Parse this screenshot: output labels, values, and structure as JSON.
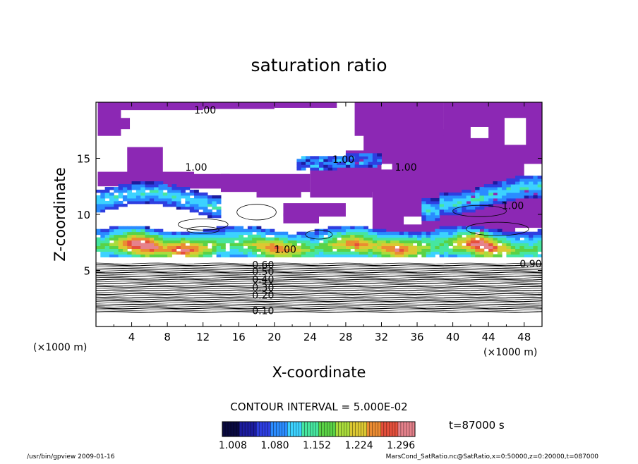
{
  "chart_data": {
    "type": "heatmap",
    "title": "saturation ratio",
    "xlabel": "X-coordinate",
    "ylabel": "Z-coordinate",
    "x_unit": "(×1000 m)",
    "y_unit": "(×1000 m)",
    "xlim": [
      0,
      50
    ],
    "ylim": [
      0,
      20
    ],
    "x_ticks": [
      "4",
      "8",
      "12",
      "16",
      "20",
      "24",
      "28",
      "32",
      "36",
      "40",
      "44",
      "48"
    ],
    "y_ticks": [
      "5",
      "10",
      "15"
    ],
    "contour_interval_label": "CONTOUR INTERVAL = 5.000E-02",
    "contour_labels": [
      {
        "text": "1.00",
        "x": 11.0,
        "z": 19.3
      },
      {
        "text": "1.00",
        "x": 10.0,
        "z": 14.2
      },
      {
        "text": "1.00",
        "x": 26.5,
        "z": 14.9
      },
      {
        "text": "1.00",
        "x": 33.5,
        "z": 14.2
      },
      {
        "text": "1.00",
        "x": 45.5,
        "z": 10.8
      },
      {
        "text": "1.00",
        "x": 20.0,
        "z": 6.9
      },
      {
        "text": "0.90",
        "x": 47.5,
        "z": 5.6
      },
      {
        "text": "0.60",
        "x": 17.5,
        "z": 5.5
      },
      {
        "text": "0.50",
        "x": 17.5,
        "z": 4.9
      },
      {
        "text": "0.40",
        "x": 17.5,
        "z": 4.2
      },
      {
        "text": "0.30",
        "x": 17.5,
        "z": 3.5
      },
      {
        "text": "0.20",
        "x": 17.5,
        "z": 2.8
      },
      {
        "text": "0.10",
        "x": 17.5,
        "z": 1.4
      }
    ],
    "colorbar": {
      "ticks": [
        "1.008",
        "1.080",
        "1.152",
        "1.224",
        "1.296"
      ],
      "min": 0.99,
      "max": 1.32,
      "colors": [
        "#0a0a40",
        "#1c1ca0",
        "#2e3ee0",
        "#2a8cff",
        "#3cd2ff",
        "#46e6a0",
        "#5ad246",
        "#aadc3c",
        "#dcc832",
        "#eb8c32",
        "#e6503c",
        "#e6828c"
      ]
    },
    "purple_color": "#8c28b4"
  },
  "time_label": "t=87000 s",
  "footer_left": "/usr/bin/gpview   2009-01-16",
  "footer_right": "MarsCond_SatRatio.nc@SatRatio,x=0:50000,z=0:20000,t=087000"
}
